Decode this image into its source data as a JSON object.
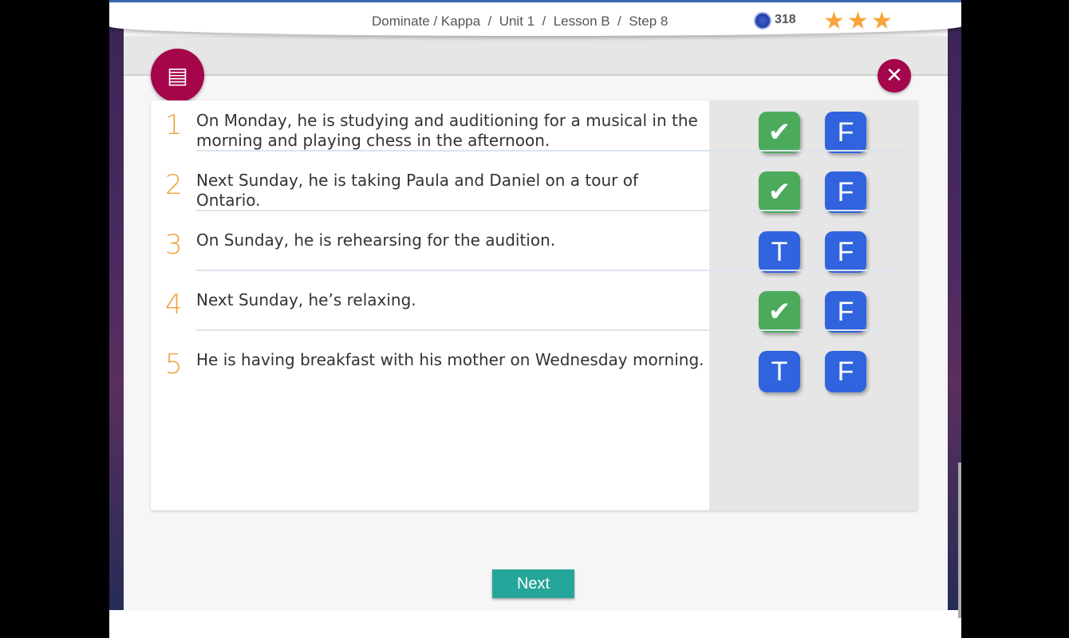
{
  "header": {
    "breadcrumb": "Dominate / Kappa  /  Unit 1  /  Lesson B  /  Step 8",
    "coins": "318",
    "stars": 3,
    "star_color": "#f7a43a"
  },
  "activity": {
    "badge_icon": "speech-reading-icon",
    "close_icon": "close-icon",
    "accent": "#a5054a"
  },
  "questions": [
    {
      "number": "1",
      "text": "On Monday, he is studying and auditioning for a musical in the morning and playing chess in the afternoon.",
      "true_state": "selected",
      "true_label": "T",
      "false_label": "F"
    },
    {
      "number": "2",
      "text": "Next Sunday, he is taking Paula and Daniel on a tour of Ontario.",
      "true_state": "selected",
      "true_label": "T",
      "false_label": "F"
    },
    {
      "number": "3",
      "text": "On Sunday, he is rehearsing for the audition.",
      "true_state": "unselected",
      "true_label": "T",
      "false_label": "F"
    },
    {
      "number": "4",
      "text": "Next Sunday, he’s relaxing.",
      "true_state": "selected",
      "true_label": "T",
      "false_label": "F"
    },
    {
      "number": "5",
      "text": "He is having breakfast with his mother on Wednesday morning.",
      "true_state": "unselected",
      "true_label": "T",
      "false_label": "F"
    }
  ],
  "footer": {
    "next_label": "Next",
    "next_color": "#26a69a"
  }
}
